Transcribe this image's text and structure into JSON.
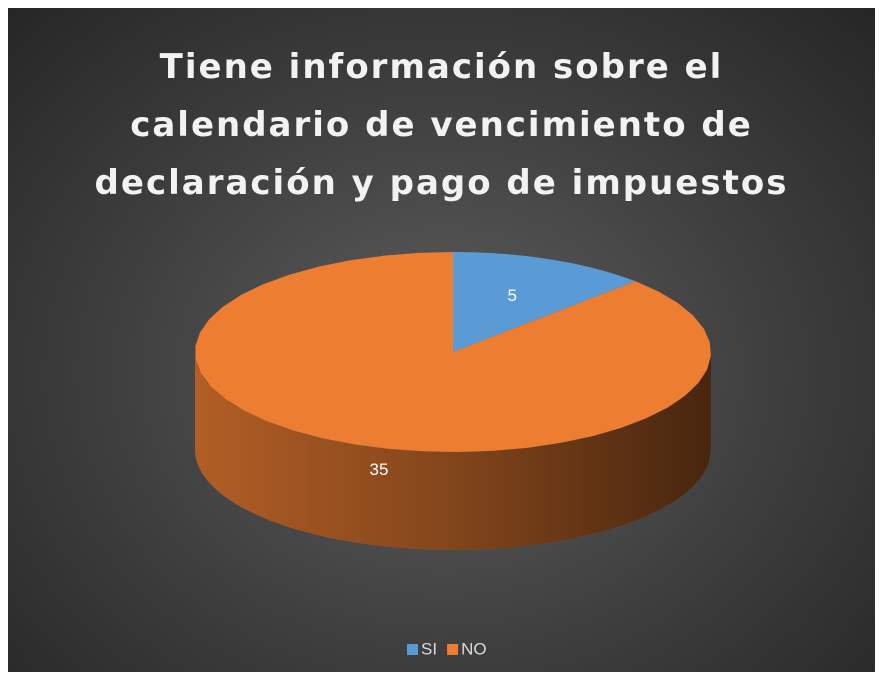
{
  "chart_data": {
    "type": "pie",
    "title": "Tiene información sobre el calendario de vencimiento de declaración y pago de impuestos",
    "categories": [
      "SI",
      "NO"
    ],
    "values": [
      5,
      35
    ],
    "colors": [
      "#5b9bd5",
      "#ed7d31"
    ],
    "legend": "bottom"
  }
}
